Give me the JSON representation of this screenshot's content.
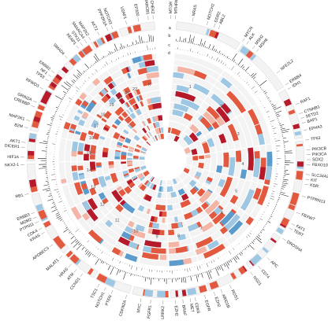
{
  "colors": {
    "amplification": "#e2593f",
    "deep_amplification": "#b5192a",
    "light_red": "#f2b5a6",
    "deletion": "#9ec7e3",
    "deep_deletion": "#5b9ccc",
    "track_bg": "#f3f3f3",
    "spike": "#1a1a1a"
  },
  "track_letters": [
    "a",
    "b",
    "c",
    "d"
  ],
  "chromosomes": [
    "1",
    "2",
    "3",
    "4",
    "5",
    "6",
    "7",
    "8",
    "9",
    "10",
    "11",
    "12",
    "13",
    "14",
    "15",
    "16",
    "17",
    "18",
    "19",
    "20",
    "21",
    "22",
    "X"
  ],
  "genes": [
    {
      "label": "MTOR",
      "angle": 2
    },
    {
      "label": "MTHFR",
      "angle": 4
    },
    {
      "label": "NRAS",
      "angle": 11
    },
    {
      "label": "NOTCH2",
      "angle": 17
    },
    {
      "label": "DDR2",
      "angle": 20
    },
    {
      "label": "ABL2",
      "angle": 22
    },
    {
      "label": "MYCN",
      "angle": 33
    },
    {
      "label": "ALK",
      "angle": 35
    },
    {
      "label": "MSH2",
      "angle": 38
    },
    {
      "label": "MSH6",
      "angle": 40
    },
    {
      "label": "NFE2L2",
      "angle": 52
    },
    {
      "label": "ERBB4",
      "angle": 58
    },
    {
      "label": "IDH1",
      "angle": 60
    },
    {
      "label": "RAF1",
      "angle": 67
    },
    {
      "label": "CTNNB1",
      "angle": 71
    },
    {
      "label": "SETD2",
      "angle": 73
    },
    {
      "label": "BAP1",
      "angle": 75
    },
    {
      "label": "EPHA3",
      "angle": 78
    },
    {
      "label": "TP63",
      "angle": 82
    },
    {
      "label": "PIK3CB",
      "angle": 86
    },
    {
      "label": "PIK3CA",
      "angle": 88
    },
    {
      "label": "SOX2",
      "angle": 90
    },
    {
      "label": "FBXO10",
      "angle": 92
    },
    {
      "label": "SLC34A2",
      "angle": 96
    },
    {
      "label": "KIT",
      "angle": 98
    },
    {
      "label": "KDR",
      "angle": 100
    },
    {
      "label": "PTPRN13",
      "angle": 105
    },
    {
      "label": "FBXW7",
      "angle": 112
    },
    {
      "label": "FAT1",
      "angle": 117
    },
    {
      "label": "TERT",
      "angle": 119
    },
    {
      "label": "DROSHA",
      "angle": 124
    },
    {
      "label": "APC",
      "angle": 134
    },
    {
      "label": "CD74",
      "angle": 139
    },
    {
      "label": "NSD1",
      "angle": 143
    },
    {
      "label": "ROS1",
      "angle": 153
    },
    {
      "label": "ARID1B",
      "angle": 157
    },
    {
      "label": "EZH2",
      "angle": 160
    },
    {
      "label": "EGFR",
      "angle": 164
    },
    {
      "label": "CDK6",
      "angle": 168
    },
    {
      "label": "MET",
      "angle": 170
    },
    {
      "label": "BRAF",
      "angle": 173
    },
    {
      "label": "EZH2",
      "angle": 176
    },
    {
      "label": "LRRK2",
      "angle": 181
    },
    {
      "label": "FGFR1",
      "angle": 186
    },
    {
      "label": "MYC",
      "angle": 190
    },
    {
      "label": "CDKN2A",
      "angle": 196
    },
    {
      "label": "PTEN",
      "angle": 202
    },
    {
      "label": "NOTCH1",
      "angle": 205
    },
    {
      "label": "TSC1",
      "angle": 208
    },
    {
      "label": "CCND1",
      "angle": 216
    },
    {
      "label": "ATM",
      "angle": 219
    },
    {
      "label": "HRAS",
      "angle": 222
    },
    {
      "label": "MALAT1",
      "angle": 227
    },
    {
      "label": "APOBEC3",
      "angle": 233
    },
    {
      "label": "KRAS",
      "angle": 239
    },
    {
      "label": "CDK4",
      "angle": 241
    },
    {
      "label": "PTPN11",
      "angle": 244
    },
    {
      "label": "MDM2",
      "angle": 246
    },
    {
      "label": "ERBB3",
      "angle": 248
    },
    {
      "label": "RB1",
      "angle": 256
    },
    {
      "label": "NKX2-1",
      "angle": 268
    },
    {
      "label": "HIF1A",
      "angle": 271
    },
    {
      "label": "DICER1",
      "angle": 275
    },
    {
      "label": "AKT1",
      "angle": 277
    },
    {
      "label": "B2M",
      "angle": 283
    },
    {
      "label": "MAP2K1",
      "angle": 286
    },
    {
      "label": "CREBBP",
      "angle": 292
    },
    {
      "label": "GRIN2A",
      "angle": 294
    },
    {
      "label": "RFWD3",
      "angle": 300
    },
    {
      "label": "TP53",
      "angle": 304
    },
    {
      "label": "NF1",
      "angle": 306
    },
    {
      "label": "ERBB2",
      "angle": 308
    },
    {
      "label": "SMAD4",
      "angle": 316
    },
    {
      "label": "KEAP1",
      "angle": 322
    },
    {
      "label": "STK11",
      "angle": 324
    },
    {
      "label": "SMARCA4",
      "angle": 326
    },
    {
      "label": "MAP2K2",
      "angle": 328
    },
    {
      "label": "AKT2",
      "angle": 332
    },
    {
      "label": "PPP2R1A",
      "angle": 336
    },
    {
      "label": "NOTCH3",
      "angle": 338
    },
    {
      "label": "U2AF1",
      "angle": 344
    },
    {
      "label": "EP300",
      "angle": 349
    },
    {
      "label": "SMARCB1",
      "angle": 353
    },
    {
      "label": "CHEK2",
      "angle": 355
    }
  ]
}
